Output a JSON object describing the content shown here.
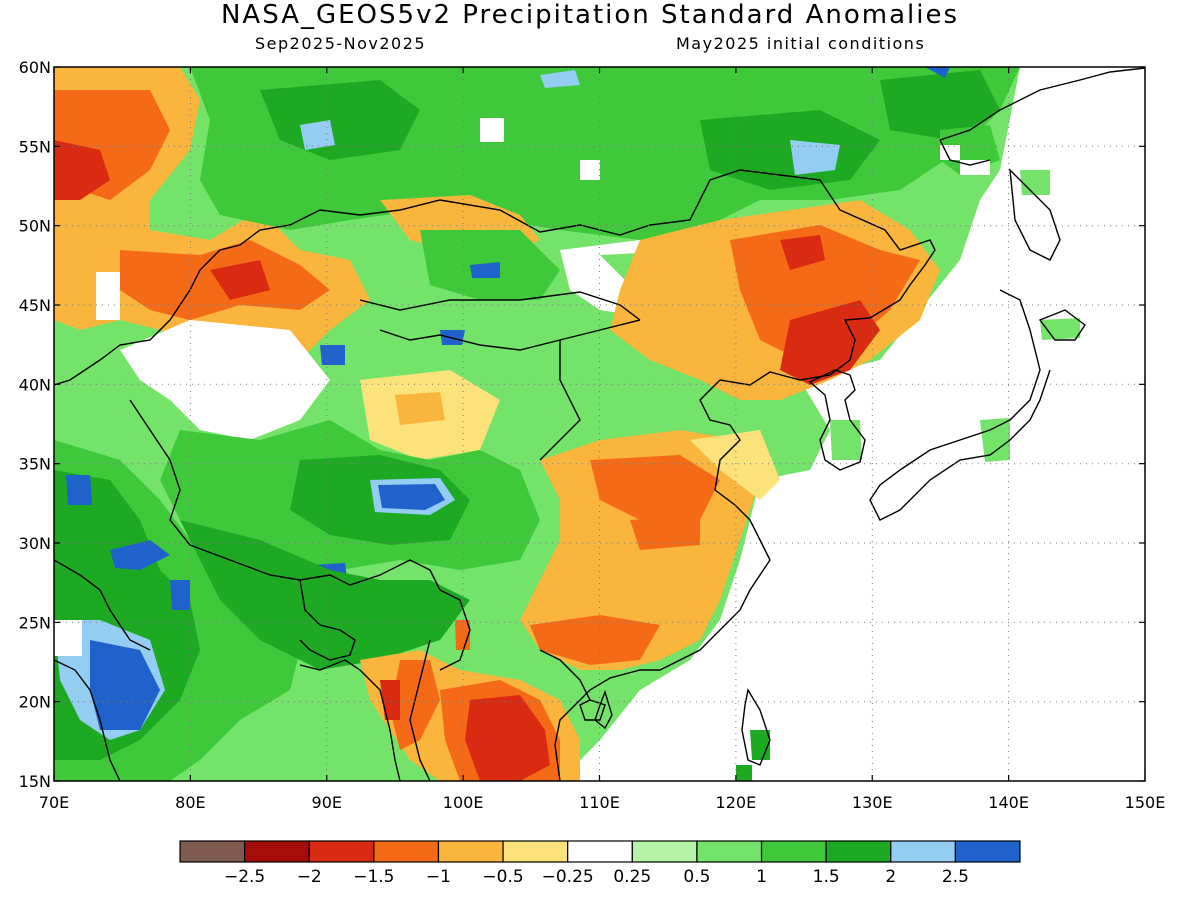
{
  "title": "NASA_GEOS5v2 Precipitation Standard Anomalies",
  "subtitle_left": "Sep2025-Nov2025",
  "subtitle_right": "May2025 initial conditions",
  "map": {
    "lon_range": [
      70,
      150
    ],
    "lat_range": [
      15,
      60
    ],
    "lon_ticks": [
      "70E",
      "80E",
      "90E",
      "100E",
      "110E",
      "120E",
      "130E",
      "140E",
      "150E"
    ],
    "lat_ticks": [
      "15N",
      "20N",
      "25N",
      "30N",
      "35N",
      "40N",
      "45N",
      "50N",
      "55N",
      "60N"
    ],
    "grid": "dotted",
    "projection": "latlon"
  },
  "colorbar": {
    "colors": [
      "#7f5a4f",
      "#a50d0a",
      "#d92a12",
      "#f56a17",
      "#f9b53c",
      "#fce27a",
      "#ffffff",
      "#b6f3a8",
      "#74e36a",
      "#3ec83a",
      "#1ea923",
      "#94cdf2",
      "#1f62cb"
    ],
    "labels": [
      "-2.5",
      "-2",
      "-1.5",
      "-1",
      "-0.5",
      "-0.25",
      "0.25",
      "0.5",
      "1",
      "1.5",
      "2",
      "2.5"
    ]
  }
}
